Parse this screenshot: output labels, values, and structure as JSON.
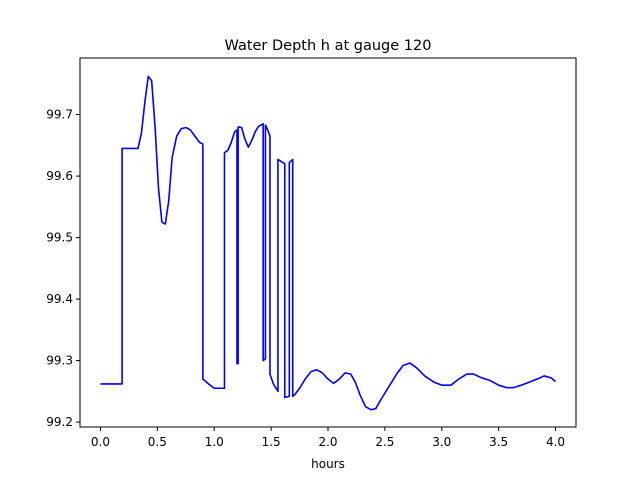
{
  "chart_data": {
    "type": "line",
    "title": "Water Depth h at gauge 120",
    "xlabel": "hours",
    "ylabel": "",
    "xlim": [
      -0.18,
      4.18
    ],
    "ylim": [
      99.192,
      99.792
    ],
    "x_ticks": [
      0.0,
      0.5,
      1.0,
      1.5,
      2.0,
      2.5,
      3.0,
      3.5,
      4.0
    ],
    "x_tick_labels": [
      "0.0",
      "0.5",
      "1.0",
      "1.5",
      "2.0",
      "2.5",
      "3.0",
      "3.5",
      "4.0"
    ],
    "y_ticks": [
      99.2,
      99.3,
      99.4,
      99.5,
      99.6,
      99.7
    ],
    "y_tick_labels": [
      "99.2",
      "99.3",
      "99.4",
      "99.5",
      "99.6",
      "99.7"
    ],
    "grid": false,
    "series": [
      {
        "color": "#0000ff",
        "x": [
          0.0,
          0.19,
          0.19,
          0.33,
          0.36,
          0.39,
          0.42,
          0.45,
          0.48,
          0.51,
          0.54,
          0.57,
          0.6,
          0.63,
          0.67,
          0.71,
          0.75,
          0.79,
          0.83,
          0.87,
          0.9,
          0.9,
          0.95,
          1.0,
          1.09,
          1.09,
          1.12,
          1.15,
          1.18,
          1.2,
          1.2,
          1.21,
          1.21,
          1.24,
          1.27,
          1.3,
          1.33,
          1.36,
          1.39,
          1.43,
          1.43,
          1.45,
          1.45,
          1.47,
          1.49,
          1.49,
          1.52,
          1.56,
          1.56,
          1.62,
          1.62,
          1.66,
          1.66,
          1.69,
          1.69,
          1.71,
          1.71,
          1.75,
          1.8,
          1.85,
          1.9,
          1.95,
          2.0,
          2.05,
          2.1,
          2.15,
          2.2,
          2.24,
          2.28,
          2.33,
          2.38,
          2.42,
          2.46,
          2.51,
          2.56,
          2.61,
          2.66,
          2.72,
          2.78,
          2.85,
          2.93,
          3.0,
          3.08,
          3.15,
          3.22,
          3.28,
          3.35,
          3.42,
          3.5,
          3.57,
          3.63,
          3.7,
          3.77,
          3.84,
          3.9,
          3.96,
          4.0
        ],
        "y": [
          99.262,
          99.262,
          99.645,
          99.645,
          99.67,
          99.72,
          99.762,
          99.755,
          99.68,
          99.58,
          99.525,
          99.522,
          99.56,
          99.63,
          99.665,
          99.677,
          99.679,
          99.675,
          99.665,
          99.655,
          99.652,
          99.27,
          99.262,
          99.255,
          99.255,
          99.638,
          99.642,
          99.655,
          99.672,
          99.675,
          99.295,
          99.295,
          99.68,
          99.679,
          99.66,
          99.647,
          99.658,
          99.672,
          99.681,
          99.685,
          99.3,
          99.303,
          99.683,
          99.675,
          99.665,
          99.278,
          99.262,
          99.25,
          99.627,
          99.62,
          99.24,
          99.242,
          99.622,
          99.627,
          99.242,
          99.245,
          99.245,
          99.255,
          99.27,
          99.282,
          99.285,
          99.28,
          99.27,
          99.263,
          99.27,
          99.28,
          99.278,
          99.265,
          99.245,
          99.225,
          99.22,
          99.222,
          99.235,
          99.25,
          99.265,
          99.28,
          99.292,
          99.296,
          99.288,
          99.275,
          99.265,
          99.26,
          99.26,
          99.27,
          99.278,
          99.278,
          99.272,
          99.268,
          99.26,
          99.256,
          99.256,
          99.26,
          99.265,
          99.27,
          99.275,
          99.272,
          99.266
        ]
      }
    ]
  }
}
